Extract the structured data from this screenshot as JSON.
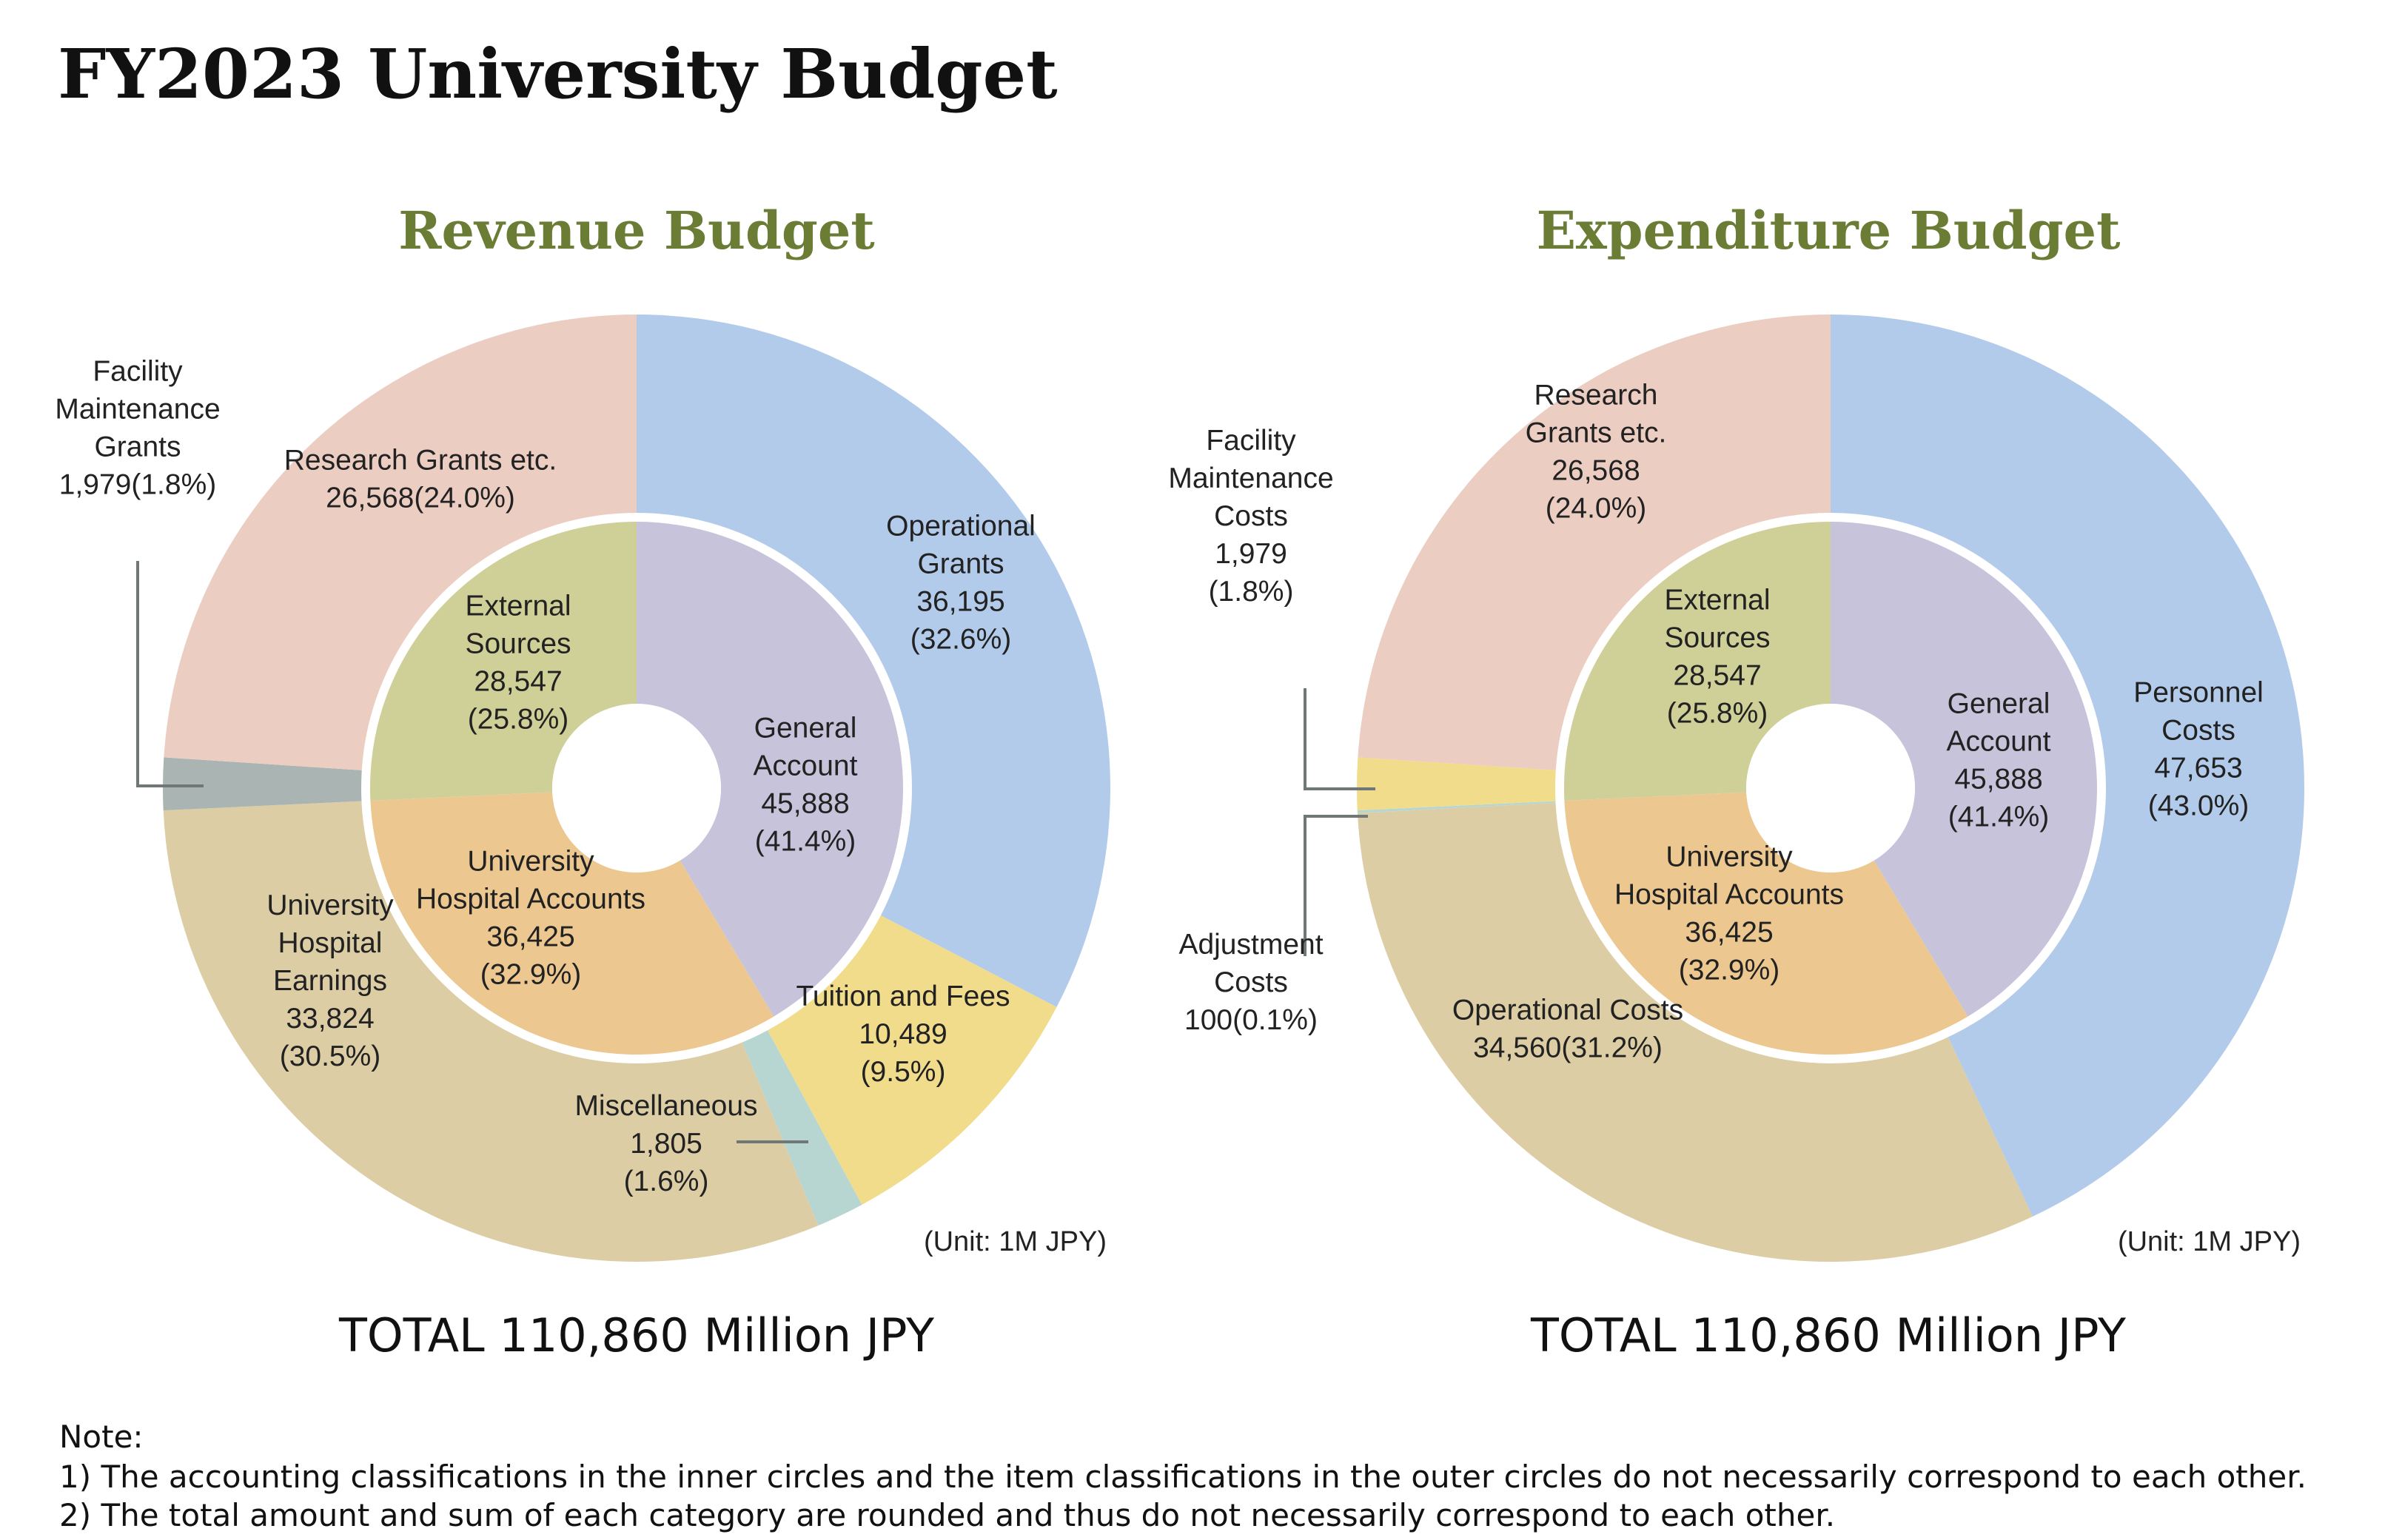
{
  "page": {
    "title": "FY2023 University Budget",
    "unit_label": "(Unit: 1M JPY)",
    "notes": [
      "Note:",
      "1) The accounting classifications in the inner circles and the item classifications in the outer circles do not necessarily correspond to each other.",
      "2) The total amount and sum of each category are rounded and thus do not necessarily correspond to each other."
    ],
    "accent_color": "#6b7c35"
  },
  "chart_data": [
    {
      "type": "donut",
      "title": "Revenue Budget",
      "total_label": "TOTAL 110,860 Million JPY",
      "total": 110860,
      "unit": "1M JPY",
      "inner_ring": [
        {
          "name": "General Account",
          "lines": [
            "General",
            "Account",
            "45,888",
            "(41.4%)"
          ],
          "value": 45888,
          "percent": 41.4,
          "color": "#c7c3da"
        },
        {
          "name": "University Hospital Accounts",
          "lines": [
            "University",
            "Hospital Accounts",
            "36,425",
            "(32.9%)"
          ],
          "value": 36425,
          "percent": 32.9,
          "color": "#ecc890"
        },
        {
          "name": "External Sources",
          "lines": [
            "External",
            "Sources",
            "28,547",
            "(25.8%)"
          ],
          "value": 28547,
          "percent": 25.8,
          "color": "#cfcf98"
        }
      ],
      "outer_ring": [
        {
          "name": "Operational Grants",
          "lines": [
            "Operational",
            "Grants",
            "36,195",
            "(32.6%)"
          ],
          "value": 36195,
          "percent": 32.6,
          "color": "#b3cbea"
        },
        {
          "name": "Tuition and Fees",
          "lines": [
            "Tuition and Fees",
            "10,489",
            "(9.5%)"
          ],
          "value": 10489,
          "percent": 9.5,
          "color": "#f1dc8c"
        },
        {
          "name": "Miscellaneous",
          "lines": [
            "Miscellaneous",
            "1,805",
            "(1.6%)"
          ],
          "value": 1805,
          "percent": 1.6,
          "color": "#b7d6d2"
        },
        {
          "name": "University Hospital Earnings",
          "lines": [
            "University",
            "Hospital",
            "Earnings",
            "33,824",
            "(30.5%)"
          ],
          "value": 33824,
          "percent": 30.5,
          "color": "#dccda5"
        },
        {
          "name": "Facility Maintenance Grants",
          "lines": [
            "Facility",
            "Maintenance",
            "Grants",
            "1,979(1.8%)"
          ],
          "value": 1979,
          "percent": 1.8,
          "color": "#a9b4b3"
        },
        {
          "name": "Research Grants etc.",
          "lines": [
            "Research Grants etc.",
            "26,568(24.0%)"
          ],
          "value": 26568,
          "percent": 24.0,
          "color": "#eccdc2"
        }
      ]
    },
    {
      "type": "donut",
      "title": "Expenditure Budget",
      "total_label": "TOTAL 110,860 Million JPY",
      "total": 110860,
      "unit": "1M JPY",
      "inner_ring": [
        {
          "name": "General Account",
          "lines": [
            "General",
            "Account",
            "45,888",
            "(41.4%)"
          ],
          "value": 45888,
          "percent": 41.4,
          "color": "#c7c3da"
        },
        {
          "name": "University Hospital Accounts",
          "lines": [
            "University",
            "Hospital Accounts",
            "36,425",
            "(32.9%)"
          ],
          "value": 36425,
          "percent": 32.9,
          "color": "#ecc890"
        },
        {
          "name": "External Sources",
          "lines": [
            "External",
            "Sources",
            "28,547",
            "(25.8%)"
          ],
          "value": 28547,
          "percent": 25.8,
          "color": "#cfcf98"
        }
      ],
      "outer_ring": [
        {
          "name": "Personnel Costs",
          "lines": [
            "Personnel",
            "Costs",
            "47,653",
            "(43.0%)"
          ],
          "value": 47653,
          "percent": 43.0,
          "color": "#b3cbea"
        },
        {
          "name": "Operational Costs",
          "lines": [
            "Operational Costs",
            "34,560(31.2%)"
          ],
          "value": 34560,
          "percent": 31.2,
          "color": "#dccda5"
        },
        {
          "name": "Adjustment Costs",
          "lines": [
            "Adjustment",
            "Costs",
            "100(0.1%)"
          ],
          "value": 100,
          "percent": 0.1,
          "color": "#b7d6d2"
        },
        {
          "name": "Facility Maintenance Costs",
          "lines": [
            "Facility",
            "Maintenance",
            "Costs",
            "1,979",
            "(1.8%)"
          ],
          "value": 1979,
          "percent": 1.8,
          "color": "#f1dc8c"
        },
        {
          "name": "Research Grants etc.",
          "lines": [
            "Research",
            "Grants etc.",
            "26,568",
            "(24.0%)"
          ],
          "value": 26568,
          "percent": 24.0,
          "color": "#eccdc2"
        }
      ]
    }
  ]
}
